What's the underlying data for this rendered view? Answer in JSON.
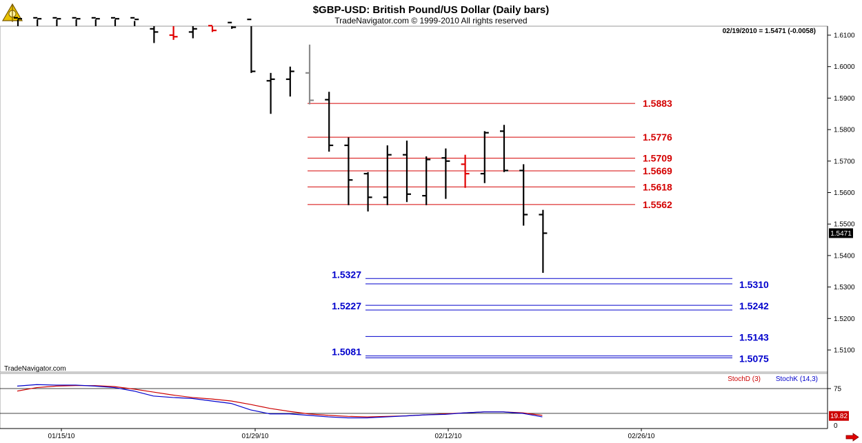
{
  "header": {
    "title": "$GBP-USD:  British Pound/US Dollar  (Daily bars)",
    "copyright": "TradeNavigator.com © 1999-2010 All rights reserved",
    "quote": "02/19/2010 = 1.5471 (-0.0058)",
    "watermark": "TradeNavigator.com"
  },
  "colors": {
    "resistance": "#d40000",
    "support": "#0000cc",
    "bar": "#000000",
    "stoch_d": "#cc0000",
    "stoch_k": "#0000cc",
    "last_price_bg": "#000000",
    "stoch_value_bg": "#cc0000"
  },
  "chart_data": [
    {
      "type": "bar",
      "subtype": "ohlc",
      "title": "$GBP-USD:  British Pound/US Dollar  (Daily bars)",
      "y_tick_labels": [
        "1.6100",
        "1.6000",
        "1.5900",
        "1.5800",
        "1.5700",
        "1.5600",
        "1.5500",
        "1.5400",
        "1.5300",
        "1.5200",
        "1.5100"
      ],
      "ylim": [
        1.5063,
        1.6155
      ],
      "last_price": "1.5471",
      "x_tick_labels": [
        "01/15/10",
        "01/29/10",
        "02/12/10",
        "02/26/10"
      ],
      "bars": [
        {
          "x": 1,
          "o": 1.6155,
          "h": 1.6155,
          "l": 1.615,
          "c": 1.6152
        },
        {
          "x": 2,
          "o": 1.6155,
          "h": 1.6155,
          "l": 1.615,
          "c": 1.6152
        },
        {
          "x": 3,
          "o": 1.6155,
          "h": 1.6155,
          "l": 1.615,
          "c": 1.6152
        },
        {
          "x": 4,
          "o": 1.6155,
          "h": 1.6155,
          "l": 1.615,
          "c": 1.6152
        },
        {
          "x": 5,
          "o": 1.6155,
          "h": 1.6155,
          "l": 1.615,
          "c": 1.6152
        },
        {
          "x": 6,
          "o": 1.6155,
          "h": 1.6155,
          "l": 1.615,
          "c": 1.6152
        },
        {
          "x": 7,
          "o": 1.6155,
          "h": 1.6155,
          "l": 1.6145,
          "c": 1.615
        },
        {
          "x": 8,
          "o": 1.612,
          "h": 1.6155,
          "l": 1.6075,
          "c": 1.611
        },
        {
          "x": 9,
          "o": 1.61,
          "h": 1.6155,
          "l": 1.6085,
          "c": 1.6095,
          "color": "red"
        },
        {
          "x": 10,
          "o": 1.611,
          "h": 1.6155,
          "l": 1.609,
          "c": 1.612
        },
        {
          "x": 11,
          "o": 1.613,
          "h": 1.6155,
          "l": 1.611,
          "c": 1.6115,
          "color": "red"
        },
        {
          "x": 12,
          "o": 1.614,
          "h": 1.6155,
          "l": 1.612,
          "c": 1.6125
        },
        {
          "x": 13,
          "o": 1.615,
          "h": 1.6155,
          "l": 1.598,
          "c": 1.5985
        },
        {
          "x": 14,
          "o": 1.5955,
          "h": 1.598,
          "l": 1.585,
          "c": 1.596
        },
        {
          "x": 15,
          "o": 1.596,
          "h": 1.6,
          "l": 1.5905,
          "c": 1.5985
        },
        {
          "x": 16,
          "o": 1.598,
          "h": 1.607,
          "l": 1.588,
          "c": 1.5893,
          "color": "gray"
        },
        {
          "x": 17,
          "o": 1.5895,
          "h": 1.592,
          "l": 1.573,
          "c": 1.575
        },
        {
          "x": 18,
          "o": 1.575,
          "h": 1.5775,
          "l": 1.556,
          "c": 1.564
        },
        {
          "x": 19,
          "o": 1.566,
          "h": 1.5665,
          "l": 1.554,
          "c": 1.5585
        },
        {
          "x": 20,
          "o": 1.5585,
          "h": 1.575,
          "l": 1.556,
          "c": 1.572
        },
        {
          "x": 21,
          "o": 1.572,
          "h": 1.5765,
          "l": 1.557,
          "c": 1.5595
        },
        {
          "x": 22,
          "o": 1.559,
          "h": 1.5715,
          "l": 1.556,
          "c": 1.5705
        },
        {
          "x": 23,
          "o": 1.571,
          "h": 1.574,
          "l": 1.558,
          "c": 1.57
        },
        {
          "x": 24,
          "o": 1.569,
          "h": 1.572,
          "l": 1.5615,
          "c": 1.566,
          "color": "red"
        },
        {
          "x": 25,
          "o": 1.566,
          "h": 1.5795,
          "l": 1.563,
          "c": 1.579
        },
        {
          "x": 26,
          "o": 1.5795,
          "h": 1.5815,
          "l": 1.5665,
          "c": 1.567
        },
        {
          "x": 27,
          "o": 1.567,
          "h": 1.569,
          "l": 1.5495,
          "c": 1.553
        },
        {
          "x": 28,
          "o": 1.553,
          "h": 1.5545,
          "l": 1.5345,
          "c": 1.5471
        }
      ],
      "resistance_levels": [
        {
          "value": 1.5883,
          "label": "1.5883"
        },
        {
          "value": 1.5776,
          "label": "1.5776"
        },
        {
          "value": 1.5709,
          "label": "1.5709"
        },
        {
          "value": 1.5669,
          "label": "1.5669"
        },
        {
          "value": 1.5618,
          "label": "1.5618"
        },
        {
          "value": 1.5562,
          "label": "1.5562"
        }
      ],
      "support_levels": [
        {
          "value": 1.5327,
          "label": "1.5327",
          "side": "left"
        },
        {
          "value": 1.531,
          "label": "1.5310",
          "side": "right"
        },
        {
          "value": 1.5242,
          "label": "1.5242",
          "side": "right"
        },
        {
          "value": 1.5227,
          "label": "1.5227",
          "side": "left"
        },
        {
          "value": 1.5143,
          "label": "1.5143",
          "side": "right"
        },
        {
          "value": 1.5081,
          "label": "1.5081",
          "side": "left"
        },
        {
          "value": 1.5075,
          "label": "1.5075",
          "side": "right"
        }
      ]
    },
    {
      "type": "line",
      "legend": [
        "StochD (3)",
        "StochK (14,3)"
      ],
      "legend_position": "top-right",
      "y_tick_labels": [
        "75"
      ],
      "y_tick_values": [
        75
      ],
      "bottom_label": "0",
      "ylim": [
        0,
        100
      ],
      "last_value": "19.82",
      "reference_lines": [
        75,
        25
      ],
      "x": [
        1,
        2,
        3,
        4,
        5,
        6,
        7,
        8,
        9,
        10,
        11,
        12,
        13,
        14,
        15,
        16,
        17,
        18,
        19,
        20,
        21,
        22,
        23,
        24,
        25,
        26,
        27,
        28
      ],
      "series": [
        {
          "name": "StochD (3)",
          "values": [
            70,
            77,
            80,
            81,
            81,
            79,
            74,
            68,
            62,
            57,
            54,
            50,
            43,
            35,
            29,
            24,
            21,
            19,
            18,
            19,
            20,
            22,
            24,
            26,
            28,
            28,
            26,
            21
          ]
        },
        {
          "name": "StochK (14,3)",
          "values": [
            80,
            83,
            82,
            82,
            80,
            77,
            70,
            60,
            57,
            55,
            50,
            45,
            32,
            24,
            24,
            21,
            18,
            16,
            16,
            18,
            20,
            22,
            23,
            26,
            28,
            28,
            25,
            18
          ]
        }
      ]
    }
  ]
}
